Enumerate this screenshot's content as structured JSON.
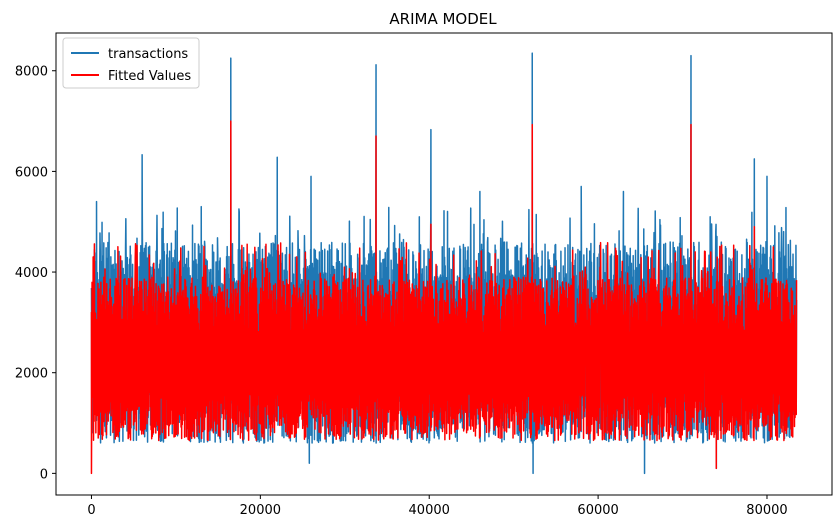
{
  "chart_data": {
    "type": "line",
    "title": "ARIMA MODEL",
    "xlabel": "",
    "ylabel": "",
    "xlim": [
      -4200,
      87700
    ],
    "ylim": [
      -430,
      8750
    ],
    "x_ticks": [
      0,
      20000,
      40000,
      60000,
      80000
    ],
    "x_tick_labels": [
      "0",
      "20000",
      "40000",
      "60000",
      "80000"
    ],
    "y_ticks": [
      0,
      2000,
      4000,
      6000,
      8000
    ],
    "y_tick_labels": [
      "0",
      "2000",
      "4000",
      "6000",
      "8000"
    ],
    "x_range": [
      0,
      83500
    ],
    "grid": false,
    "legend_position": "top-left",
    "series": [
      {
        "name": "transactions",
        "color": "#1f77b4",
        "typical_low": 600,
        "typical_high": 4600,
        "peaks": [
          {
            "x": 600,
            "y": 5400
          },
          {
            "x": 6000,
            "y": 6330
          },
          {
            "x": 13000,
            "y": 5300
          },
          {
            "x": 16500,
            "y": 8250
          },
          {
            "x": 22000,
            "y": 6280
          },
          {
            "x": 26000,
            "y": 5900
          },
          {
            "x": 33700,
            "y": 8120
          },
          {
            "x": 40200,
            "y": 6830
          },
          {
            "x": 46000,
            "y": 5600
          },
          {
            "x": 52200,
            "y": 8350
          },
          {
            "x": 58000,
            "y": 5700
          },
          {
            "x": 63000,
            "y": 5600
          },
          {
            "x": 71000,
            "y": 8300
          },
          {
            "x": 78500,
            "y": 6250
          },
          {
            "x": 80000,
            "y": 5900
          }
        ],
        "dips": [
          {
            "x": 25800,
            "y": 200
          },
          {
            "x": 52300,
            "y": 0
          },
          {
            "x": 65500,
            "y": 0
          },
          {
            "x": 74000,
            "y": 100
          }
        ]
      },
      {
        "name": "Fitted Values",
        "color": "#ff0000",
        "typical_low": 650,
        "typical_high": 3900,
        "peaks": [
          {
            "x": 200,
            "y": 4300
          },
          {
            "x": 16500,
            "y": 7000
          },
          {
            "x": 33700,
            "y": 6700
          },
          {
            "x": 40200,
            "y": 4950
          },
          {
            "x": 52200,
            "y": 6930
          },
          {
            "x": 71000,
            "y": 6930
          },
          {
            "x": 78500,
            "y": 4900
          }
        ],
        "dips": [
          {
            "x": 0,
            "y": 0
          },
          {
            "x": 74000,
            "y": 100
          }
        ]
      }
    ]
  }
}
